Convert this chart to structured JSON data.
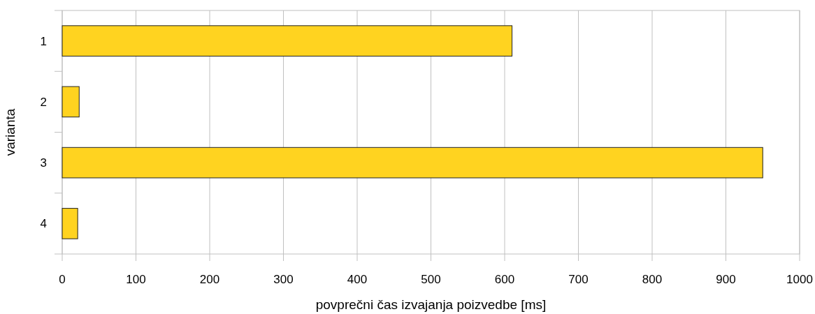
{
  "chart_data": {
    "type": "bar",
    "orientation": "horizontal",
    "categories": [
      "1",
      "2",
      "3",
      "4"
    ],
    "values": [
      610,
      23,
      950,
      21
    ],
    "color": "#ffd320",
    "xlim": [
      0,
      1000
    ],
    "xticks": [
      0,
      100,
      200,
      300,
      400,
      500,
      600,
      700,
      800,
      900,
      1000
    ],
    "xlabel": "povprečni čas izvajanja poizvedbe [ms]",
    "ylabel": "varianta",
    "grid": "x"
  }
}
